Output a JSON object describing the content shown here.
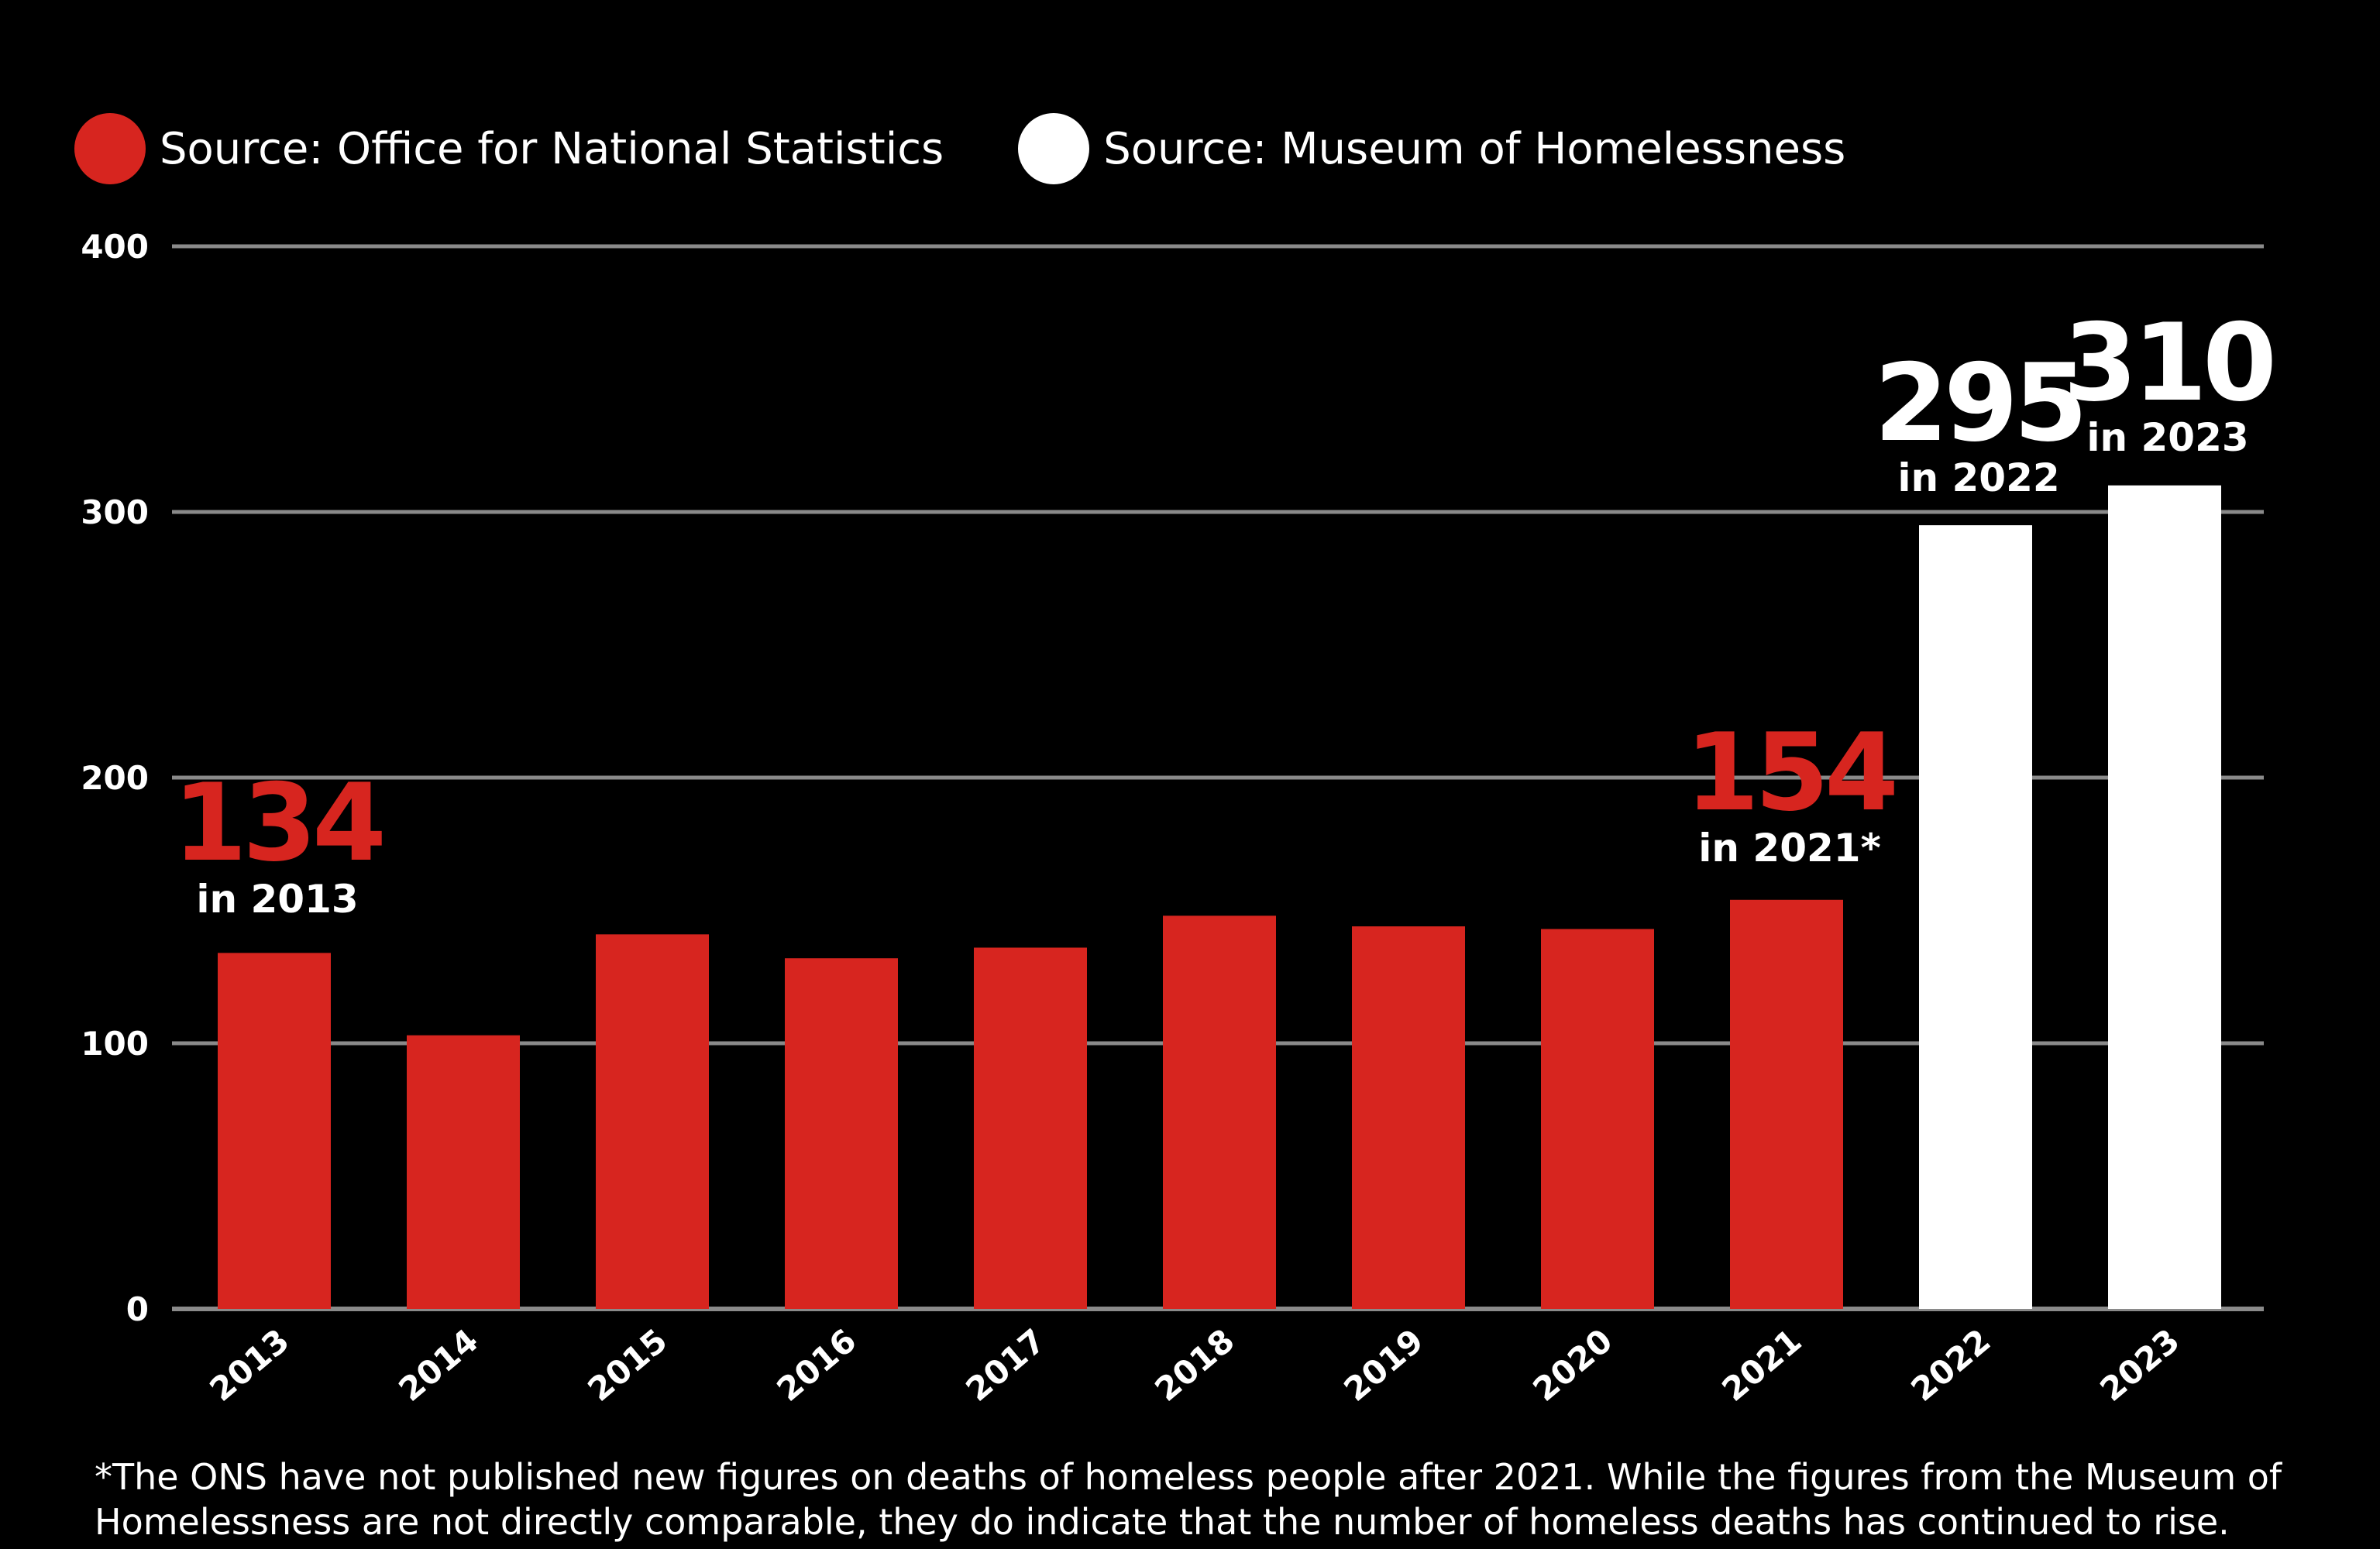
{
  "colors": {
    "background": "#000000",
    "ons": "#d7251f",
    "museum": "#ffffff",
    "gridline": "#8a8a8a",
    "text": "#ffffff"
  },
  "legend": [
    {
      "label": "Source: Office for National Statistics",
      "color": "#d7251f"
    },
    {
      "label": "Source: Museum of Homelessness",
      "color": "#ffffff"
    }
  ],
  "chart_data": {
    "type": "bar",
    "categories": [
      "2013",
      "2014",
      "2015",
      "2016",
      "2017",
      "2018",
      "2019",
      "2020",
      "2021",
      "2022",
      "2023"
    ],
    "series": [
      {
        "name": "Source: Office for National Statistics",
        "color": "#d7251f",
        "values": [
          134,
          103,
          141,
          132,
          136,
          148,
          144,
          143,
          154,
          null,
          null
        ]
      },
      {
        "name": "Source: Museum of Homelessness",
        "color": "#ffffff",
        "values": [
          null,
          null,
          null,
          null,
          null,
          null,
          null,
          null,
          null,
          295,
          310
        ]
      }
    ],
    "yticks": [
      "0",
      "100",
      "200",
      "300",
      "400"
    ],
    "ylim": [
      0,
      400
    ],
    "grid": true,
    "legend_position": "top-left",
    "annotations": [
      {
        "category": "2013",
        "value_label": "134",
        "sub_label": "in 2013",
        "color": "#d7251f"
      },
      {
        "category": "2021",
        "value_label": "154",
        "sub_label": "in 2021*",
        "color": "#d7251f"
      },
      {
        "category": "2022",
        "value_label": "295",
        "sub_label": "in 2022",
        "color": "#ffffff"
      },
      {
        "category": "2023",
        "value_label": "310",
        "sub_label": "in 2023",
        "color": "#ffffff"
      }
    ]
  },
  "footnote": "*The ONS have not published new figures on deaths of homeless people after 2021. While the figures from the Museum of Homelessness are not directly comparable, they do indicate that the number of homeless deaths has continued to rise."
}
